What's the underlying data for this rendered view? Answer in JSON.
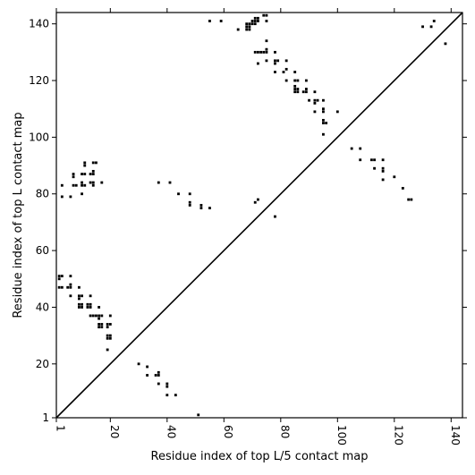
{
  "chart_data": {
    "type": "scatter",
    "title": "",
    "xlabel": "Residue index of top L/5 contact map",
    "ylabel": "Residue index of top L contact map",
    "xlim": [
      1,
      144
    ],
    "ylim": [
      1,
      144
    ],
    "xticks": [
      1,
      20,
      40,
      60,
      80,
      100,
      120,
      140
    ],
    "yticks": [
      1,
      20,
      40,
      60,
      80,
      100,
      120,
      140
    ],
    "x_tick_labels": [
      "1",
      "20",
      "40",
      "60",
      "80",
      "100",
      "120",
      "140"
    ],
    "y_tick_labels": [
      "1",
      "20",
      "40",
      "60",
      "80",
      "100",
      "120",
      "140"
    ],
    "marker_color": "#000000",
    "diagonal": {
      "from": [
        1,
        1
      ],
      "to": [
        144,
        144
      ],
      "color": "#000000"
    },
    "points": [
      [
        68,
        139
      ],
      [
        68,
        140
      ],
      [
        69,
        139
      ],
      [
        69,
        140
      ],
      [
        70,
        140
      ],
      [
        70,
        141
      ],
      [
        71,
        141
      ],
      [
        71,
        142
      ],
      [
        72,
        142
      ],
      [
        72,
        141
      ],
      [
        71,
        140
      ],
      [
        69,
        138
      ],
      [
        68,
        138
      ],
      [
        65,
        138
      ],
      [
        55,
        141
      ],
      [
        59,
        141
      ],
      [
        75,
        141
      ],
      [
        74,
        143
      ],
      [
        75,
        143
      ],
      [
        71,
        130
      ],
      [
        72,
        130
      ],
      [
        73,
        130
      ],
      [
        74,
        130
      ],
      [
        75,
        130
      ],
      [
        75,
        131
      ],
      [
        75,
        134
      ],
      [
        72,
        126
      ],
      [
        75,
        127
      ],
      [
        78,
        130
      ],
      [
        78,
        127
      ],
      [
        79,
        127
      ],
      [
        78,
        126
      ],
      [
        78,
        123
      ],
      [
        81,
        123
      ],
      [
        82,
        124
      ],
      [
        82,
        127
      ],
      [
        82,
        120
      ],
      [
        85,
        123
      ],
      [
        85,
        120
      ],
      [
        86,
        120
      ],
      [
        85,
        118
      ],
      [
        85,
        117
      ],
      [
        86,
        117
      ],
      [
        85,
        116
      ],
      [
        86,
        116
      ],
      [
        88,
        116
      ],
      [
        89,
        117
      ],
      [
        89,
        116
      ],
      [
        89,
        120
      ],
      [
        90,
        113
      ],
      [
        92,
        116
      ],
      [
        92,
        113
      ],
      [
        93,
        113
      ],
      [
        92,
        112
      ],
      [
        92,
        109
      ],
      [
        95,
        113
      ],
      [
        95,
        110
      ],
      [
        95,
        109
      ],
      [
        95,
        106
      ],
      [
        96,
        105
      ],
      [
        95,
        105
      ],
      [
        95,
        101
      ],
      [
        100,
        109
      ],
      [
        105,
        96
      ],
      [
        108,
        96
      ],
      [
        108,
        92
      ],
      [
        112,
        92
      ],
      [
        113,
        92
      ],
      [
        113,
        89
      ],
      [
        116,
        92
      ],
      [
        116,
        89
      ],
      [
        116,
        88
      ],
      [
        116,
        85
      ],
      [
        120,
        86
      ],
      [
        123,
        82
      ],
      [
        125,
        78
      ],
      [
        126,
        78
      ],
      [
        130,
        139
      ],
      [
        133,
        139
      ],
      [
        134,
        141
      ],
      [
        138,
        133
      ],
      [
        71,
        77
      ],
      [
        72,
        78
      ],
      [
        78,
        72
      ],
      [
        3,
        83
      ],
      [
        3,
        79
      ],
      [
        6,
        79
      ],
      [
        7,
        83
      ],
      [
        8,
        83
      ],
      [
        7,
        86
      ],
      [
        7,
        87
      ],
      [
        10,
        80
      ],
      [
        10,
        83
      ],
      [
        10,
        84
      ],
      [
        11,
        83
      ],
      [
        10,
        87
      ],
      [
        11,
        87
      ],
      [
        11,
        90
      ],
      [
        11,
        91
      ],
      [
        13,
        87
      ],
      [
        14,
        87
      ],
      [
        14,
        88
      ],
      [
        13,
        84
      ],
      [
        14,
        84
      ],
      [
        14,
        83
      ],
      [
        14,
        91
      ],
      [
        15,
        91
      ],
      [
        17,
        84
      ],
      [
        37,
        84
      ],
      [
        41,
        84
      ],
      [
        44,
        80
      ],
      [
        48,
        80
      ],
      [
        48,
        77
      ],
      [
        48,
        76
      ],
      [
        52,
        76
      ],
      [
        52,
        75
      ],
      [
        55,
        75
      ],
      [
        2,
        51
      ],
      [
        3,
        51
      ],
      [
        2,
        50
      ],
      [
        2,
        47
      ],
      [
        3,
        47
      ],
      [
        5,
        47
      ],
      [
        6,
        48
      ],
      [
        6,
        47
      ],
      [
        6,
        51
      ],
      [
        6,
        44
      ],
      [
        9,
        47
      ],
      [
        9,
        44
      ],
      [
        10,
        44
      ],
      [
        9,
        43
      ],
      [
        9,
        41
      ],
      [
        10,
        41
      ],
      [
        9,
        40
      ],
      [
        10,
        40
      ],
      [
        13,
        44
      ],
      [
        12,
        41
      ],
      [
        13,
        41
      ],
      [
        12,
        40
      ],
      [
        13,
        40
      ],
      [
        13,
        37
      ],
      [
        14,
        37
      ],
      [
        15,
        37
      ],
      [
        16,
        40
      ],
      [
        16,
        37
      ],
      [
        17,
        37
      ],
      [
        16,
        36
      ],
      [
        16,
        34
      ],
      [
        16,
        33
      ],
      [
        17,
        33
      ],
      [
        17,
        34
      ],
      [
        19,
        34
      ],
      [
        20,
        34
      ],
      [
        19,
        33
      ],
      [
        20,
        37
      ],
      [
        19,
        30
      ],
      [
        19,
        29
      ],
      [
        20,
        29
      ],
      [
        20,
        30
      ],
      [
        19,
        25
      ],
      [
        30,
        20
      ],
      [
        33,
        19
      ],
      [
        33,
        16
      ],
      [
        36,
        16
      ],
      [
        37,
        16
      ],
      [
        37,
        17
      ],
      [
        37,
        13
      ],
      [
        40,
        13
      ],
      [
        40,
        12
      ],
      [
        40,
        9
      ],
      [
        43,
        9
      ],
      [
        51,
        2
      ]
    ]
  }
}
